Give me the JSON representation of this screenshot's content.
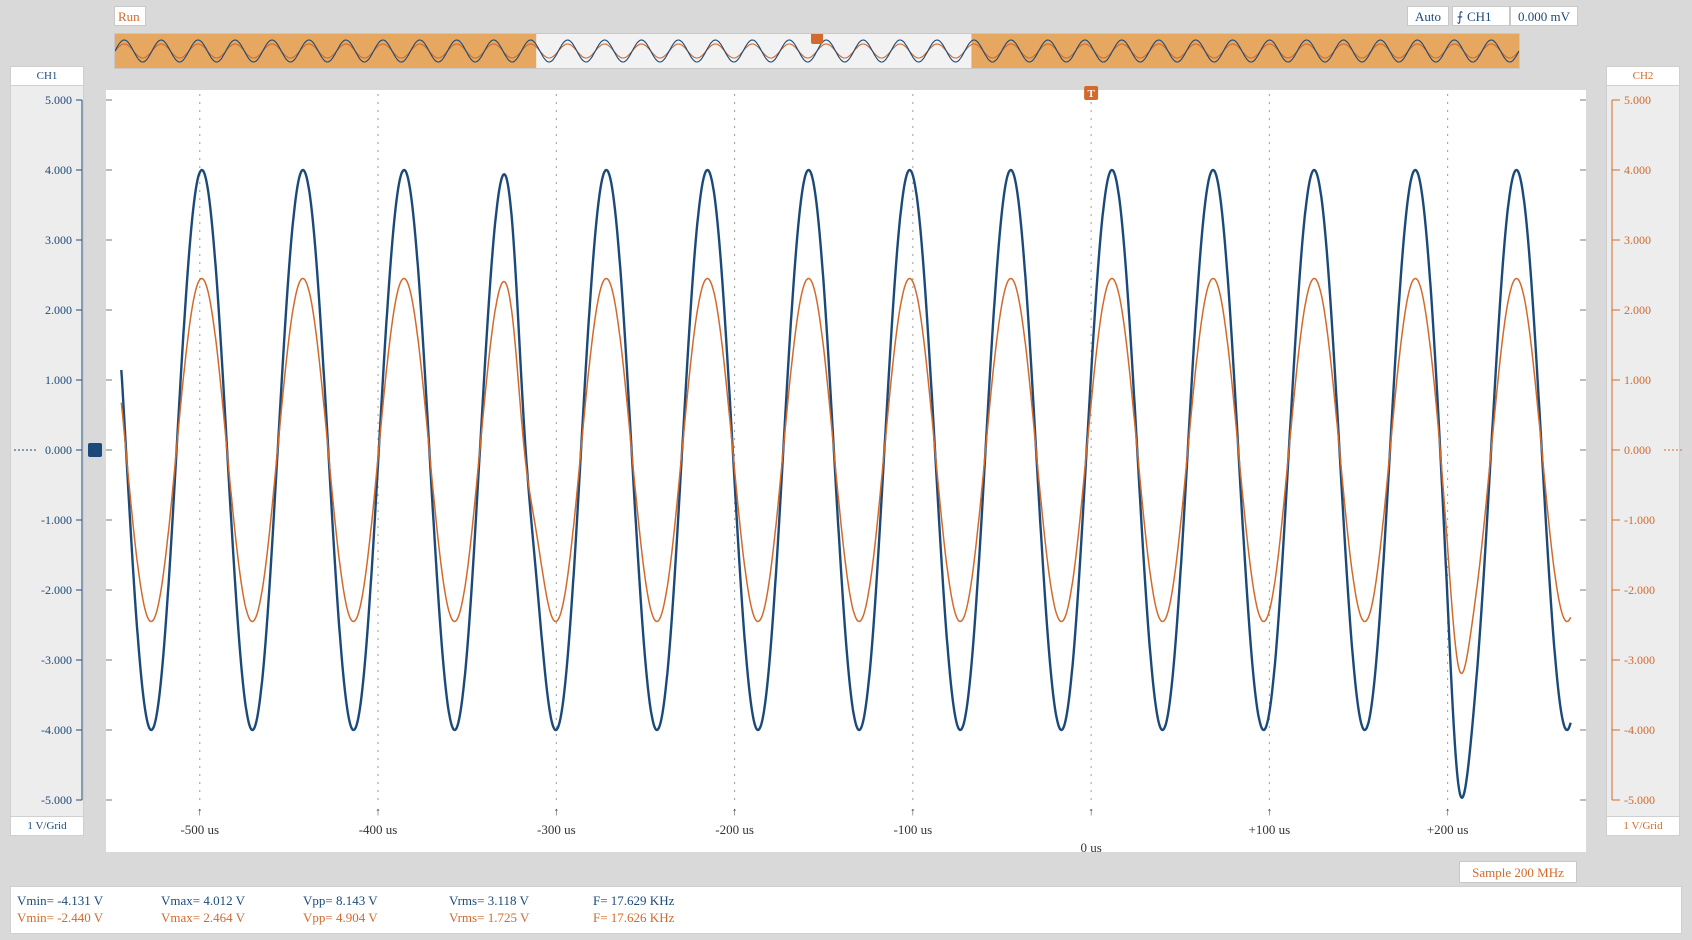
{
  "header": {
    "run_status": "Run",
    "trigger_mode": "Auto",
    "trigger_source": "CH1",
    "trigger_level": "0.000 mV",
    "trigger_marker": "T"
  },
  "channels": {
    "ch1": {
      "label": "CH1",
      "scale": "1 V/Grid",
      "color": "#1b4a7a"
    },
    "ch2": {
      "label": "CH2",
      "scale": "1 V/Grid",
      "color": "#d26a2c"
    }
  },
  "sample_rate": "Sample 200 MHz",
  "overview": {
    "highlight_color": "#e6a860",
    "window_start_frac": 0.3,
    "window_end_frac": 0.61
  },
  "measurements": {
    "ch1": {
      "vmin": "Vmin= -4.131 V",
      "vmax": "Vmax= 4.012 V",
      "vpp": "Vpp= 8.143 V",
      "vrms": "Vrms= 3.118 V",
      "freq": "F= 17.629 KHz"
    },
    "ch2": {
      "vmin": "Vmin= -2.440 V",
      "vmax": "Vmax= 2.464 V",
      "vpp": "Vpp= 4.904 V",
      "vrms": "Vrms= 1.725 V",
      "freq": "F= 17.626 KHz"
    }
  },
  "chart_data": {
    "type": "line",
    "x_unit": "us",
    "xlim": [
      -547,
      272
    ],
    "ylim": [
      -5,
      5
    ],
    "x_tick_labels": [
      "-500 us",
      "-400 us",
      "-300 us",
      "-200 us",
      "-100 us",
      "0 us",
      "+100 us",
      "+200 us"
    ],
    "x_ticks": [
      -500,
      -400,
      -300,
      -200,
      -100,
      0,
      100,
      200
    ],
    "y_tick_labels": [
      "5.000",
      "4.000",
      "3.000",
      "2.000",
      "1.000",
      "0.000",
      "-1.000",
      "-2.000",
      "-3.000",
      "-4.000",
      "-5.000"
    ],
    "y_ticks": [
      5,
      4,
      3,
      2,
      1,
      0,
      -1,
      -2,
      -3,
      -4,
      -5
    ],
    "grid": true,
    "series": [
      {
        "name": "CH1",
        "color": "#1b4a7a",
        "amplitude": 4.0,
        "frequency_khz": 17.629,
        "phase_zero_us": -2.5,
        "clip": 4.1,
        "glitches_us": [
          -318,
          206
        ],
        "glitch_dip": 1.2
      },
      {
        "name": "CH2",
        "color": "#d26a2c",
        "amplitude": 2.45,
        "frequency_khz": 17.626,
        "phase_zero_us": -2.5,
        "glitches_us": [
          -318,
          206
        ],
        "glitch_dip": 0.9
      }
    ]
  }
}
